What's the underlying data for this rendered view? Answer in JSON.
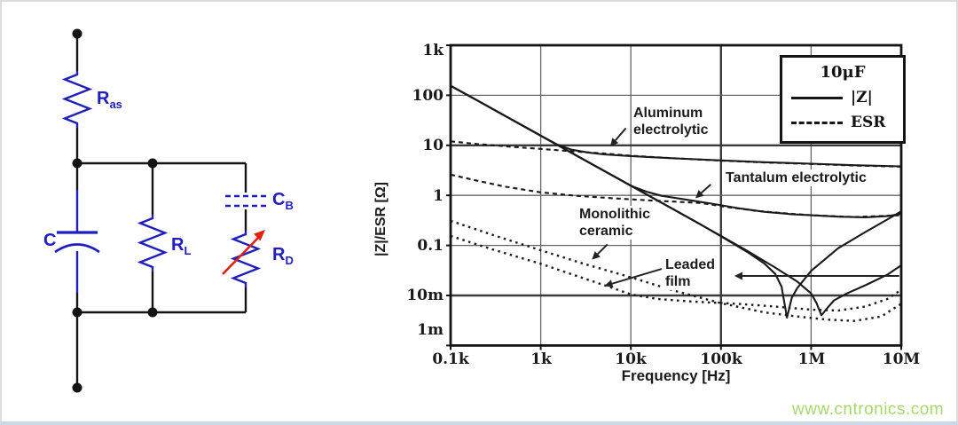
{
  "circuit": {
    "labels": {
      "ras_base": "R",
      "ras_sub": "as",
      "c": "C",
      "rl_base": "R",
      "rl_sub": "L",
      "cb_base": "C",
      "cb_sub": "B",
      "rd_base": "R",
      "rd_sub": "D"
    },
    "colors": {
      "component": "#1f1fbe",
      "wire": "#141414",
      "arrow": "#e02010",
      "node": "#141414"
    }
  },
  "chart": {
    "annotations": {
      "aluminum_line1": "Aluminum",
      "aluminum_line2": "electrolytic",
      "tantalum": "Tantalum electrolytic",
      "ceramic_line1": "Monolithic",
      "ceramic_line2": "ceramic",
      "film_line1": "Leaded",
      "film_line2": "film"
    }
  },
  "chart_data": {
    "type": "line",
    "title": "10μF",
    "xlabel": "Frequency [Hz]",
    "ylabel": "|Z|/ESR [Ω]",
    "x_scale": "log",
    "y_scale": "log",
    "x_range_hz": [
      100,
      10000000
    ],
    "y_range_ohm": [
      0.001,
      1000
    ],
    "x_tick_labels": [
      "0.1k",
      "1k",
      "10k",
      "100k",
      "1M",
      "10M"
    ],
    "x_tick_hz": [
      100,
      1000,
      10000,
      100000,
      1000000,
      10000000
    ],
    "y_tick_labels": [
      "1k",
      "100",
      "10",
      "1",
      "0.1",
      "10m",
      "1m"
    ],
    "y_tick_ohm": [
      1000,
      100,
      10,
      1,
      0.1,
      0.01,
      0.001
    ],
    "thick_x_hz": [
      100000
    ],
    "thick_y_ohm": [
      10,
      0.01
    ],
    "legend": {
      "title": "10μF",
      "solid": "|Z|",
      "dashed": "ESR"
    },
    "series": [
      {
        "name": "aluminum-electrolytic-z",
        "component": "Aluminum electrolytic",
        "quantity": "|Z|",
        "style": "solid",
        "points": [
          [
            100,
            155
          ],
          [
            200,
            78
          ],
          [
            400,
            39
          ],
          [
            700,
            22.3
          ],
          [
            1000,
            15.6
          ],
          [
            1500,
            10.5
          ],
          [
            2200,
            8.2
          ],
          [
            3300,
            7.2
          ],
          [
            5000,
            6.6
          ],
          [
            10000,
            6.1
          ],
          [
            30000,
            5.5
          ],
          [
            100000,
            5.0
          ],
          [
            300000,
            4.6
          ],
          [
            1000000,
            4.3
          ],
          [
            3000000,
            4.0
          ],
          [
            10000000,
            3.8
          ]
        ]
      },
      {
        "name": "aluminum-electrolytic-esr",
        "component": "Aluminum electrolytic",
        "quantity": "ESR",
        "style": "dashed",
        "points": [
          [
            100,
            12
          ],
          [
            200,
            10.6
          ],
          [
            500,
            9.3
          ],
          [
            1000,
            8.5
          ],
          [
            2000,
            7.7
          ],
          [
            5000,
            6.9
          ],
          [
            10000,
            6.2
          ],
          [
            30000,
            5.5
          ],
          [
            100000,
            4.95
          ],
          [
            300000,
            4.55
          ],
          [
            1000000,
            4.25
          ],
          [
            3000000,
            3.95
          ],
          [
            10000000,
            3.75
          ]
        ]
      },
      {
        "name": "tantalum-electrolytic-z",
        "component": "Tantalum electrolytic",
        "quantity": "|Z|",
        "style": "solid",
        "points": [
          [
            100,
            155
          ],
          [
            200,
            78
          ],
          [
            400,
            39
          ],
          [
            700,
            22.3
          ],
          [
            1000,
            15.6
          ],
          [
            2000,
            7.8
          ],
          [
            4000,
            3.9
          ],
          [
            7000,
            2.23
          ],
          [
            10000,
            1.56
          ],
          [
            15000,
            1.18
          ],
          [
            22000,
            0.98
          ],
          [
            40000,
            0.83
          ],
          [
            80000,
            0.68
          ],
          [
            150000,
            0.56
          ],
          [
            300000,
            0.47
          ],
          [
            600000,
            0.42
          ],
          [
            1000000,
            0.4
          ],
          [
            2000000,
            0.375
          ],
          [
            4000000,
            0.365
          ],
          [
            7000000,
            0.385
          ],
          [
            10000000,
            0.43
          ]
        ]
      },
      {
        "name": "tantalum-electrolytic-esr",
        "component": "Tantalum electrolytic",
        "quantity": "ESR",
        "style": "dashed",
        "points": [
          [
            100,
            2.6
          ],
          [
            200,
            1.95
          ],
          [
            400,
            1.5
          ],
          [
            1000,
            1.15
          ],
          [
            2500,
            0.98
          ],
          [
            6000,
            0.88
          ],
          [
            15000,
            0.8
          ],
          [
            30000,
            0.75
          ],
          [
            60000,
            0.7
          ],
          [
            120000,
            0.58
          ],
          [
            250000,
            0.49
          ],
          [
            500000,
            0.44
          ],
          [
            1000000,
            0.4
          ],
          [
            3000000,
            0.37
          ],
          [
            10000000,
            0.4
          ]
        ]
      },
      {
        "name": "monolithic-ceramic-z",
        "component": "Monolithic ceramic",
        "quantity": "|Z|",
        "style": "solid",
        "points": [
          [
            100,
            155
          ],
          [
            200,
            78
          ],
          [
            400,
            39
          ],
          [
            700,
            22.3
          ],
          [
            1000,
            15.6
          ],
          [
            2000,
            7.8
          ],
          [
            4000,
            3.9
          ],
          [
            7000,
            2.23
          ],
          [
            10000,
            1.56
          ],
          [
            30000,
            0.52
          ],
          [
            100000,
            0.155
          ],
          [
            200000,
            0.076
          ],
          [
            400000,
            0.036
          ],
          [
            700000,
            0.019
          ],
          [
            1000000,
            0.011
          ],
          [
            1150000,
            0.007
          ],
          [
            1300000,
            0.004
          ],
          [
            1500000,
            0.0055
          ],
          [
            1800000,
            0.008
          ],
          [
            2500000,
            0.011
          ],
          [
            4000000,
            0.016
          ],
          [
            7000000,
            0.026
          ],
          [
            10000000,
            0.04
          ]
        ]
      },
      {
        "name": "monolithic-ceramic-esr",
        "component": "Monolithic ceramic",
        "quantity": "ESR",
        "style": "dotted",
        "points": [
          [
            100,
            0.31
          ],
          [
            300,
            0.16
          ],
          [
            1000,
            0.08
          ],
          [
            3000,
            0.043
          ],
          [
            10000,
            0.023
          ],
          [
            30000,
            0.0125
          ],
          [
            100000,
            0.007
          ],
          [
            300000,
            0.0046
          ],
          [
            700000,
            0.0038
          ],
          [
            1500000,
            0.0033
          ],
          [
            3000000,
            0.0031
          ],
          [
            6000000,
            0.0038
          ],
          [
            10000000,
            0.0068
          ]
        ]
      },
      {
        "name": "leaded-film-z",
        "component": "Leaded film",
        "quantity": "|Z|",
        "style": "solid",
        "points": [
          [
            100,
            155
          ],
          [
            200,
            78
          ],
          [
            400,
            39
          ],
          [
            700,
            22.3
          ],
          [
            1000,
            15.6
          ],
          [
            2000,
            7.8
          ],
          [
            4000,
            3.9
          ],
          [
            7000,
            2.23
          ],
          [
            10000,
            1.56
          ],
          [
            30000,
            0.52
          ],
          [
            60000,
            0.26
          ],
          [
            100000,
            0.152
          ],
          [
            200000,
            0.072
          ],
          [
            300000,
            0.044
          ],
          [
            400000,
            0.027
          ],
          [
            470000,
            0.015
          ],
          [
            540000,
            0.0036
          ],
          [
            610000,
            0.009
          ],
          [
            700000,
            0.014
          ],
          [
            1000000,
            0.031
          ],
          [
            2000000,
            0.088
          ],
          [
            4000000,
            0.185
          ],
          [
            7000000,
            0.33
          ],
          [
            10000000,
            0.48
          ]
        ]
      },
      {
        "name": "leaded-film-esr",
        "component": "Leaded film",
        "quantity": "ESR",
        "style": "dotted",
        "points": [
          [
            100,
            0.155
          ],
          [
            300,
            0.082
          ],
          [
            1000,
            0.043
          ],
          [
            3000,
            0.022
          ],
          [
            6000,
            0.0145
          ],
          [
            10000,
            0.0105
          ],
          [
            20000,
            0.0085
          ],
          [
            50000,
            0.0075
          ],
          [
            150000,
            0.0068
          ],
          [
            400000,
            0.006
          ],
          [
            1000000,
            0.0052
          ],
          [
            2000000,
            0.005
          ],
          [
            4000000,
            0.006
          ],
          [
            7000000,
            0.0085
          ],
          [
            10000000,
            0.013
          ]
        ]
      }
    ],
    "annotation_arrows": [
      {
        "name": "aluminum-arrow",
        "from_hz_ohm": [
          8800,
          22
        ],
        "to_hz_ohm": [
          5900,
          9.5
        ]
      },
      {
        "name": "tantalum-arrow",
        "from_hz_ohm": [
          77000,
          1.65
        ],
        "to_hz_ohm": [
          52000,
          0.88
        ]
      },
      {
        "name": "ceramic-arrow",
        "from_hz_ohm": [
          5500,
          0.105
        ],
        "to_hz_ohm": [
          3700,
          0.052
        ]
      },
      {
        "name": "film-arrow",
        "from_hz_ohm": [
          22000,
          0.034
        ],
        "to_hz_ohm": [
          5100,
          0.0155
        ]
      },
      {
        "name": "resonance-arrow",
        "from_hz_ohm": [
          9500000,
          0.0245
        ],
        "to_hz_ohm": [
          141000,
          0.0245
        ]
      }
    ]
  },
  "watermark": {
    "text": "www.cntronics.com",
    "color": "#a5d96e"
  }
}
